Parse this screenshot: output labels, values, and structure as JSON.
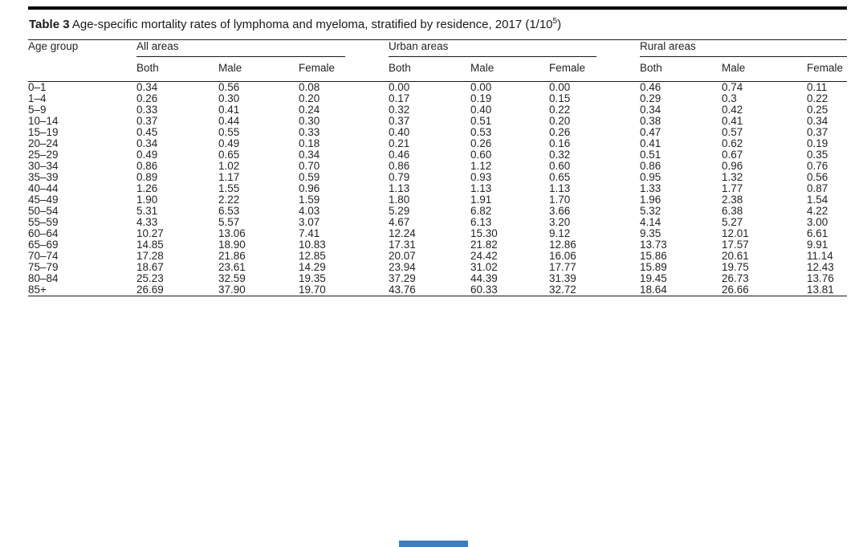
{
  "caption": {
    "label": "Table 3",
    "text": " Age-specific mortality rates of lymphoma and myeloma, stratified by residence, 2017 (1/10",
    "sup": "5",
    "close": ")"
  },
  "table": {
    "row_header": "Age group",
    "groups": [
      {
        "label": "All areas",
        "columns": [
          "Both",
          "Male",
          "Female"
        ]
      },
      {
        "label": "Urban areas",
        "columns": [
          "Both",
          "Male",
          "Female"
        ]
      },
      {
        "label": "Rural areas",
        "columns": [
          "Both",
          "Male",
          "Female"
        ]
      }
    ],
    "rows": [
      {
        "age": "0–1",
        "values": [
          "0.34",
          "0.56",
          "0.08",
          "0.00",
          "0.00",
          "0.00",
          "0.46",
          "0.74",
          "0.11"
        ]
      },
      {
        "age": "1–4",
        "values": [
          "0.26",
          "0.30",
          "0.20",
          "0.17",
          "0.19",
          "0.15",
          "0.29",
          "0.3",
          "0.22"
        ]
      },
      {
        "age": "5–9",
        "values": [
          "0.33",
          "0.41",
          "0.24",
          "0.32",
          "0.40",
          "0.22",
          "0.34",
          "0.42",
          "0.25"
        ]
      },
      {
        "age": "10–14",
        "values": [
          "0.37",
          "0.44",
          "0.30",
          "0.37",
          "0.51",
          "0.20",
          "0.38",
          "0.41",
          "0.34"
        ]
      },
      {
        "age": "15–19",
        "values": [
          "0.45",
          "0.55",
          "0.33",
          "0.40",
          "0.53",
          "0.26",
          "0.47",
          "0.57",
          "0.37"
        ]
      },
      {
        "age": "20–24",
        "values": [
          "0.34",
          "0.49",
          "0.18",
          "0.21",
          "0.26",
          "0.16",
          "0.41",
          "0.62",
          "0.19"
        ]
      },
      {
        "age": "25–29",
        "values": [
          "0.49",
          "0.65",
          "0.34",
          "0.46",
          "0.60",
          "0.32",
          "0.51",
          "0.67",
          "0.35"
        ]
      },
      {
        "age": "30–34",
        "values": [
          "0.86",
          "1.02",
          "0.70",
          "0.86",
          "1.12",
          "0.60",
          "0.86",
          "0.96",
          "0.76"
        ]
      },
      {
        "age": "35–39",
        "values": [
          "0.89",
          "1.17",
          "0.59",
          "0.79",
          "0.93",
          "0.65",
          "0.95",
          "1.32",
          "0.56"
        ]
      },
      {
        "age": "40–44",
        "values": [
          "1.26",
          "1.55",
          "0.96",
          "1.13",
          "1.13",
          "1.13",
          "1.33",
          "1.77",
          "0.87"
        ]
      },
      {
        "age": "45–49",
        "values": [
          "1.90",
          "2.22",
          "1.59",
          "1.80",
          "1.91",
          "1.70",
          "1.96",
          "2.38",
          "1.54"
        ]
      },
      {
        "age": "50–54",
        "values": [
          "5.31",
          "6.53",
          "4.03",
          "5.29",
          "6.82",
          "3.66",
          "5.32",
          "6.38",
          "4.22"
        ]
      },
      {
        "age": "55–59",
        "values": [
          "4.33",
          "5.57",
          "3.07",
          "4.67",
          "6.13",
          "3.20",
          "4.14",
          "5.27",
          "3.00"
        ]
      },
      {
        "age": "60–64",
        "values": [
          "10.27",
          "13.06",
          "7.41",
          "12.24",
          "15.30",
          "9.12",
          "9.35",
          "12.01",
          "6.61"
        ]
      },
      {
        "age": "65–69",
        "values": [
          "14.85",
          "18.90",
          "10.83",
          "17.31",
          "21.82",
          "12.86",
          "13.73",
          "17.57",
          "9.91"
        ]
      },
      {
        "age": "70–74",
        "values": [
          "17.28",
          "21.86",
          "12.85",
          "20.07",
          "24.42",
          "16.06",
          "15.86",
          "20.61",
          "11.14"
        ]
      },
      {
        "age": "75–79",
        "values": [
          "18.67",
          "23.61",
          "14.29",
          "23.94",
          "31.02",
          "17.77",
          "15.89",
          "19.75",
          "12.43"
        ]
      },
      {
        "age": "80–84",
        "values": [
          "25.23",
          "32.59",
          "19.35",
          "37.29",
          "44.39",
          "31.39",
          "19.45",
          "26.73",
          "13.76"
        ]
      },
      {
        "age": "85+",
        "values": [
          "26.69",
          "37.90",
          "19.70",
          "43.76",
          "60.33",
          "32.72",
          "18.64",
          "26.66",
          "13.81"
        ]
      }
    ]
  },
  "footer": {
    "bar_color": "#3d7ebf"
  }
}
